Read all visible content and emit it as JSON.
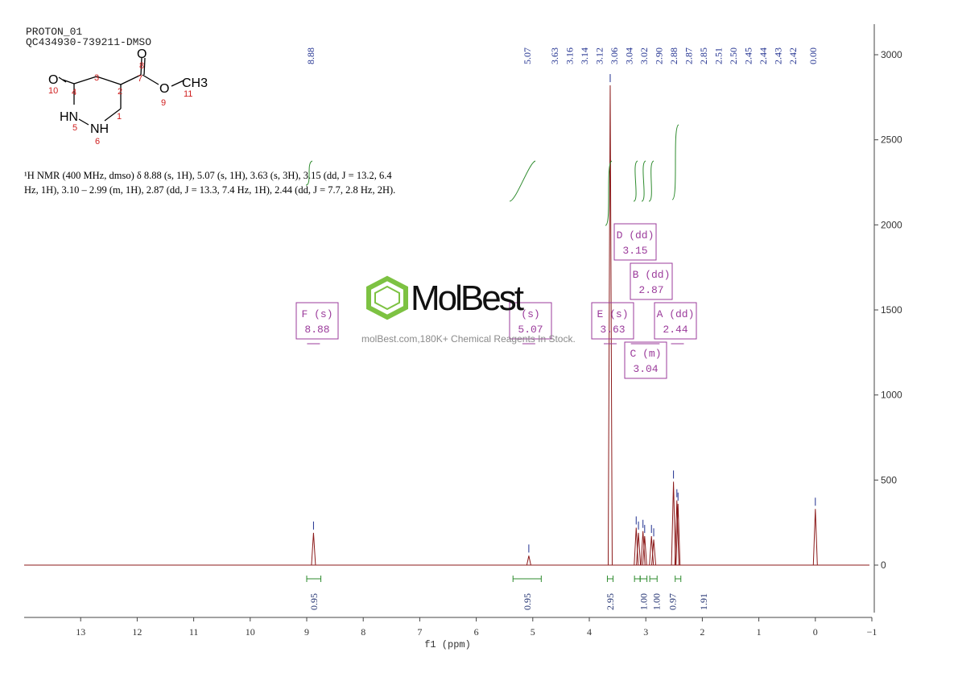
{
  "header": {
    "line1": "PROTON_01",
    "line2": "QC434930-739211-DMSO"
  },
  "structure": {
    "atoms": [
      "O",
      "O",
      "O",
      "CH3",
      "HN",
      "NH"
    ],
    "numbers": [
      "10",
      "4",
      "3",
      "2",
      "8",
      "7",
      "9",
      "11",
      "1",
      "5",
      "6"
    ]
  },
  "description": {
    "line1": "¹H NMR (400 MHz, dmso) δ 8.88 (s, 1H), 5.07 (s, 1H), 3.63 (s, 3H), 3.15 (dd, J = 13.2, 6.4",
    "line2": "Hz, 1H), 3.10 – 2.99 (m, 1H), 2.87 (dd, J = 13.3, 7.4 Hz, 1H), 2.44 (dd, J = 7.7, 2.8 Hz, 2H)."
  },
  "watermark": {
    "logo": "MolBest",
    "text": "molBest.com,180K+ Chemical Reagents In Stock."
  },
  "colors": {
    "spectrum": "#8b1a1a",
    "peak_labels": "#1f2f8f",
    "integrals": "#2e8b2e",
    "multiplets": "#9b3b9b",
    "axis": "#444444",
    "logo_green": "#7dc242"
  },
  "chart_data": {
    "type": "line",
    "xlabel": "f1 (ppm)",
    "xlim": [
      14,
      -1
    ],
    "ylim": [
      -300,
      3200
    ],
    "x_ticks": [
      "13",
      "12",
      "11",
      "10",
      "9",
      "8",
      "7",
      "6",
      "5",
      "4",
      "3",
      "2",
      "1",
      "0",
      "-1"
    ],
    "y_ticks": [
      "3000",
      "2500",
      "2000",
      "1500",
      "1000",
      "500",
      "0"
    ],
    "peaks": [
      {
        "ppm": 8.88,
        "height": 190
      },
      {
        "ppm": 5.07,
        "height": 55
      },
      {
        "ppm": 3.63,
        "height": 2820
      },
      {
        "ppm": 3.17,
        "height": 220
      },
      {
        "ppm": 3.13,
        "height": 190
      },
      {
        "ppm": 3.05,
        "height": 200
      },
      {
        "ppm": 3.02,
        "height": 170
      },
      {
        "ppm": 2.9,
        "height": 170
      },
      {
        "ppm": 2.86,
        "height": 150
      },
      {
        "ppm": 2.51,
        "height": 490
      },
      {
        "ppm": 2.45,
        "height": 380
      },
      {
        "ppm": 2.43,
        "height": 360
      },
      {
        "ppm": 0.0,
        "height": 330
      }
    ],
    "peak_labels": [
      "8.88",
      "5.07",
      "3.63",
      "3.16",
      "3.14",
      "3.12",
      "3.06",
      "3.04",
      "3.02",
      "2.90",
      "2.88",
      "2.87",
      "2.85",
      "2.51",
      "2.50",
      "2.45",
      "2.44",
      "2.43",
      "2.42",
      "0.00"
    ],
    "integrals": [
      {
        "from": 9.0,
        "to": 8.75,
        "value": "0.95"
      },
      {
        "from": 5.35,
        "to": 4.85,
        "value": "0.95"
      },
      {
        "from": 3.68,
        "to": 3.58,
        "value": "2.95"
      },
      {
        "from": 3.2,
        "to": 3.1,
        "value": "1.00"
      },
      {
        "from": 3.1,
        "to": 2.98,
        "value": "1.00"
      },
      {
        "from": 2.93,
        "to": 2.8,
        "value": "0.97"
      },
      {
        "from": 2.48,
        "to": 2.38,
        "value": "1.91"
      }
    ],
    "multiplets": [
      {
        "label": "F (s)",
        "shift": "8.88",
        "ppm": 8.88
      },
      {
        "label": "(s)",
        "shift": "5.07",
        "ppm": 5.07
      },
      {
        "label": "E (s)",
        "shift": "3.63",
        "ppm": 3.63
      },
      {
        "label": "D (dd)",
        "shift": "3.15",
        "ppm": 3.15
      },
      {
        "label": "C (m)",
        "shift": "3.04",
        "ppm": 3.04
      },
      {
        "label": "B (dd)",
        "shift": "2.87",
        "ppm": 2.87
      },
      {
        "label": "A (dd)",
        "shift": "2.44",
        "ppm": 2.44
      }
    ]
  }
}
